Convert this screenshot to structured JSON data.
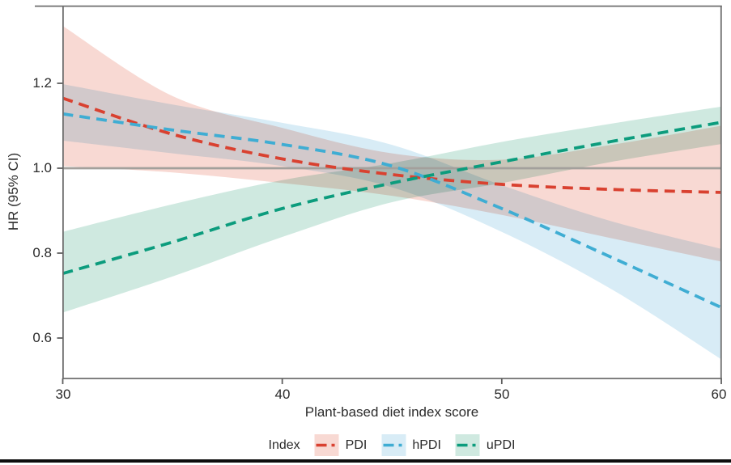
{
  "chart_data": {
    "type": "line",
    "subtype": "spline-with-confidence-bands",
    "xlabel": "Plant-based diet index score",
    "ylabel": "HR (95% CI)",
    "x_ticks": [
      "30",
      "40",
      "50",
      "60"
    ],
    "y_ticks": [
      "1.2",
      "1.0",
      "0.8",
      "0.6"
    ],
    "x_tick_values": [
      30,
      40,
      50,
      60
    ],
    "y_tick_values": [
      1.2,
      1.0,
      0.8,
      0.6
    ],
    "xlim": [
      30,
      60
    ],
    "ylim": [
      0.505,
      1.383
    ],
    "grid": "off",
    "reference_line_y": 1.0,
    "legend_title": "Index",
    "legend_position": "bottom",
    "x": [
      30,
      35,
      40,
      45,
      50,
      55,
      60
    ],
    "series": [
      {
        "name": "PDI",
        "line_color": "#d94130",
        "band_color": "#f8d9d3",
        "hr": [
          1.165,
          1.08,
          1.022,
          0.985,
          0.962,
          0.95,
          0.943
        ],
        "ci_upper": [
          1.335,
          1.17,
          1.095,
          1.035,
          1.02,
          1.055,
          1.1
        ],
        "ci_lower": [
          1.005,
          0.99,
          0.965,
          0.935,
          0.89,
          0.835,
          0.78
        ]
      },
      {
        "name": "hPDI",
        "line_color": "#3fadd3",
        "band_color": "#d8ecf6",
        "hr": [
          1.128,
          1.09,
          1.056,
          1.005,
          0.905,
          0.79,
          0.672
        ],
        "ci_upper": [
          1.198,
          1.15,
          1.107,
          1.055,
          0.96,
          0.875,
          0.81
        ],
        "ci_lower": [
          1.065,
          1.035,
          1.005,
          0.955,
          0.85,
          0.715,
          0.55
        ]
      },
      {
        "name": "uPDI",
        "line_color": "#0c9c7d",
        "band_color": "#cfe9e0",
        "hr": [
          0.752,
          0.826,
          0.905,
          0.965,
          1.015,
          1.063,
          1.108
        ],
        "ci_upper": [
          0.85,
          0.915,
          0.972,
          1.012,
          1.062,
          1.105,
          1.145
        ],
        "ci_lower": [
          0.66,
          0.745,
          0.838,
          0.92,
          0.965,
          1.015,
          1.057
        ]
      }
    ]
  },
  "colors": {
    "reference_line": "#a3a09c",
    "axis_border": "#6e6e6e",
    "tick_mark": "#5f5f5f",
    "text": "#2b2b2b",
    "figure_bottom_bar": "#0d0d0d",
    "background": "#ffffff"
  }
}
